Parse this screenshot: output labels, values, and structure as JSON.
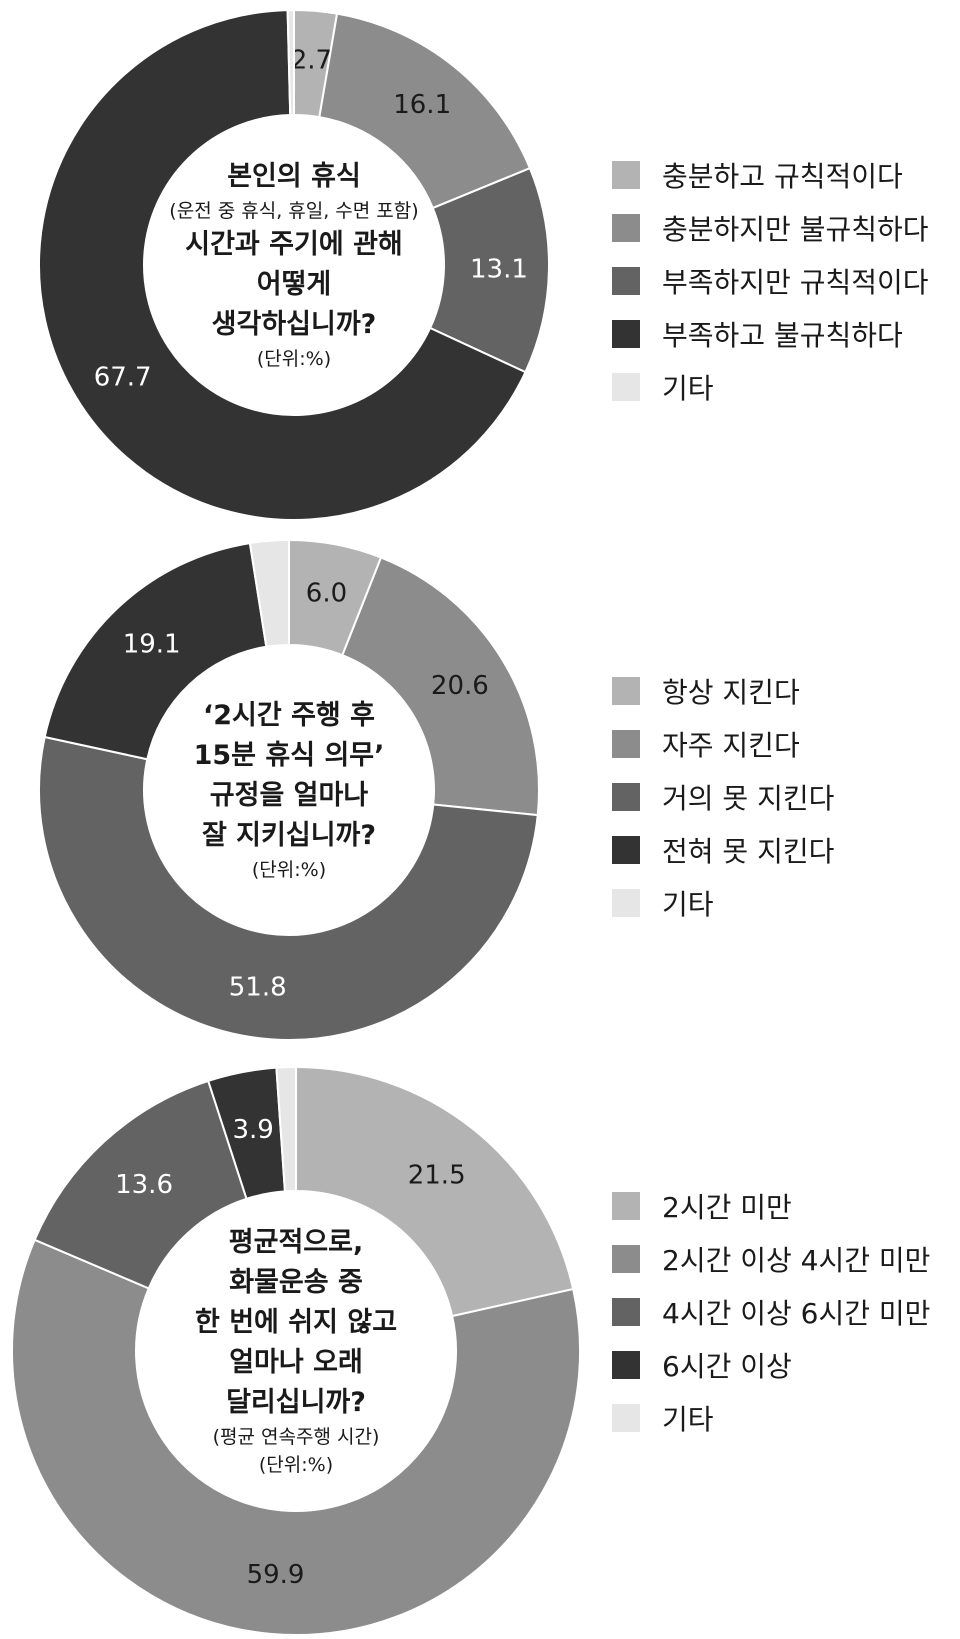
{
  "chart_data": [
    {
      "type": "donut",
      "title_lines": [
        "본인의 휴식",
        "시간과 주기에 관해",
        "어떻게",
        "생각하십니까?"
      ],
      "note": "(운전 중 휴식, 휴일, 수면 포함)",
      "unit": "(단위:%)",
      "categories": [
        "충분하고 규칙적이다",
        "충분하지만 불규칙하다",
        "부족하지만 규칙적이다",
        "부족하고 불규칙하다",
        "기타"
      ],
      "values": [
        2.7,
        16.1,
        13.1,
        67.7,
        0.4
      ],
      "labels": [
        "2.7",
        "16.1",
        "13.1",
        "67.7",
        ""
      ]
    },
    {
      "type": "donut",
      "title_lines": [
        "‘2시간 주행 후",
        "15분 휴식 의무’",
        "규정을 얼마나",
        "잘 지키십니까?"
      ],
      "unit": "(단위:%)",
      "categories": [
        "항상 지킨다",
        "자주 지킨다",
        "거의 못 지킨다",
        "전혀 못 지킨다",
        "기타"
      ],
      "values": [
        6.0,
        20.6,
        51.8,
        19.1,
        2.5
      ],
      "labels": [
        "6.0",
        "20.6",
        "51.8",
        "19.1",
        ""
      ]
    },
    {
      "type": "donut",
      "title_lines": [
        "평균적으로,",
        "화물운송 중",
        "한 번에 쉬지 않고",
        "얼마나 오래",
        "달리십니까?"
      ],
      "note": "(평균 연속주행 시간)",
      "unit": "(단위:%)",
      "categories": [
        "2시간 미만",
        "2시간 이상 4시간 미만",
        "4시간 이상 6시간 미만",
        "6시간 이상",
        "기타"
      ],
      "values": [
        21.5,
        59.9,
        13.6,
        3.9,
        1.1
      ],
      "labels": [
        "21.5",
        "59.9",
        "13.6",
        "3.9",
        ""
      ]
    }
  ],
  "colors": [
    "#b3b3b3",
    "#8c8c8c",
    "#636363",
    "#333333",
    "#e6e6e6"
  ]
}
